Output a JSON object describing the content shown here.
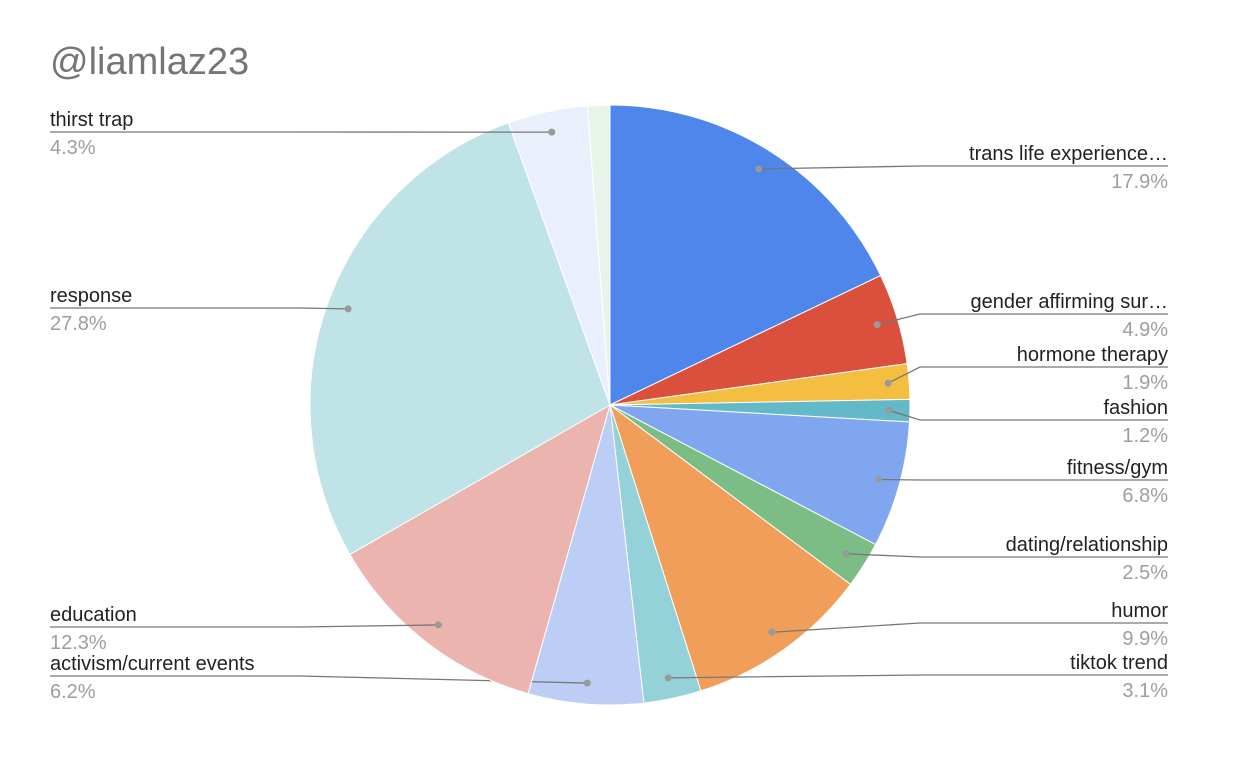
{
  "chart_data": {
    "type": "pie",
    "title": "@liamlaz23",
    "categories": [
      "trans life experience…",
      "gender affirming sur…",
      "hormone therapy",
      "fashion",
      "fitness/gym",
      "dating/relationship",
      "humor",
      "tiktok trend",
      "activism/current events",
      "education",
      "response",
      "thirst trap",
      null
    ],
    "values": [
      17.9,
      4.9,
      1.9,
      1.2,
      6.8,
      2.5,
      9.9,
      3.1,
      6.2,
      12.3,
      27.8,
      4.3,
      1.2
    ],
    "value_labels": [
      "17.9%",
      "4.9%",
      "1.9%",
      "1.2%",
      "6.8%",
      "2.5%",
      "9.9%",
      "3.1%",
      "6.2%",
      "12.3%",
      "27.8%",
      "4.3%",
      null
    ],
    "colors": [
      "#4f86ec",
      "#db4f3d",
      "#f4be41",
      "#63b9c7",
      "#80a6f0",
      "#7bbd85",
      "#f09e5a",
      "#95d1d9",
      "#bccdf6",
      "#ecb4ae",
      "#bfe3e6",
      "#e9f0fc",
      "#e8f3ea"
    ]
  }
}
